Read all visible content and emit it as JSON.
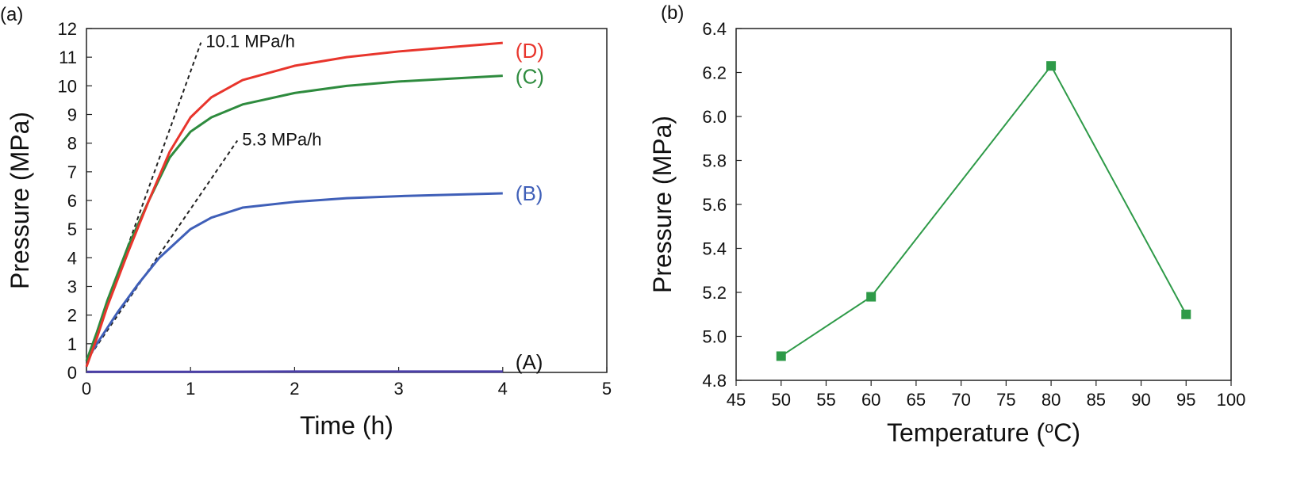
{
  "chart_data": [
    {
      "panel_label": "(a)",
      "type": "line",
      "xlabel": "Time (h)",
      "ylabel": "Pressure (MPa)",
      "xlim": [
        0,
        5
      ],
      "ylim": [
        0,
        12
      ],
      "x_ticks": [
        "0",
        "1",
        "2",
        "3",
        "4",
        "5"
      ],
      "y_ticks": [
        "0",
        "1",
        "2",
        "3",
        "4",
        "5",
        "6",
        "7",
        "8",
        "9",
        "10",
        "11",
        "12"
      ],
      "grid": false,
      "series": [
        {
          "name": "(A)",
          "color": "#4b3fa8",
          "x": [
            0,
            1,
            2,
            3,
            4
          ],
          "y": [
            0.02,
            0.02,
            0.03,
            0.03,
            0.03
          ]
        },
        {
          "name": "(B)",
          "color": "#3f5fb8",
          "x": [
            0,
            0.1,
            0.3,
            0.5,
            0.7,
            0.85,
            1.0,
            1.2,
            1.5,
            2.0,
            2.5,
            3.0,
            3.5,
            4.0
          ],
          "y": [
            0.4,
            1.0,
            2.1,
            3.1,
            4.0,
            4.5,
            5.0,
            5.4,
            5.75,
            5.95,
            6.08,
            6.15,
            6.2,
            6.25
          ]
        },
        {
          "name": "(C)",
          "color": "#2e8b3e",
          "x": [
            0,
            0.1,
            0.2,
            0.4,
            0.6,
            0.8,
            1.0,
            1.2,
            1.5,
            2.0,
            2.5,
            3.0,
            3.5,
            4.0
          ],
          "y": [
            0.4,
            1.4,
            2.5,
            4.4,
            6.0,
            7.5,
            8.4,
            8.9,
            9.35,
            9.75,
            10.0,
            10.15,
            10.25,
            10.35
          ]
        },
        {
          "name": "(D)",
          "color": "#e8352c",
          "x": [
            0,
            0.1,
            0.2,
            0.4,
            0.6,
            0.8,
            1.0,
            1.2,
            1.5,
            2.0,
            2.5,
            3.0,
            3.5,
            4.0
          ],
          "y": [
            0.2,
            1.2,
            2.3,
            4.2,
            6.0,
            7.7,
            8.9,
            9.6,
            10.2,
            10.7,
            11.0,
            11.2,
            11.35,
            11.5
          ]
        }
      ],
      "reference_lines": [
        {
          "label": "10.1 MPa/h",
          "x": [
            0,
            1.1
          ],
          "y": [
            0.4,
            11.51
          ]
        },
        {
          "label": "5.3 MPa/h",
          "x": [
            0,
            1.45
          ],
          "y": [
            0.4,
            8.09
          ]
        }
      ]
    },
    {
      "panel_label": "(b)",
      "type": "line",
      "xlabel": "Temperature (°C)",
      "xlabel_parts": [
        "Temperature (",
        "o",
        "C)"
      ],
      "ylabel": "Pressure (MPa)",
      "xlim": [
        45,
        100
      ],
      "ylim": [
        4.8,
        6.4
      ],
      "x_ticks": [
        "45",
        "50",
        "55",
        "60",
        "65",
        "70",
        "75",
        "80",
        "85",
        "90",
        "95",
        "100"
      ],
      "y_ticks": [
        "4.8",
        "5.0",
        "5.2",
        "5.4",
        "5.6",
        "5.8",
        "6.0",
        "6.2",
        "6.4"
      ],
      "grid": false,
      "series": [
        {
          "color": "#2e9a48",
          "marker": "square",
          "x": [
            50,
            60,
            80,
            95
          ],
          "y": [
            4.91,
            5.18,
            6.23,
            5.1
          ]
        }
      ]
    }
  ]
}
